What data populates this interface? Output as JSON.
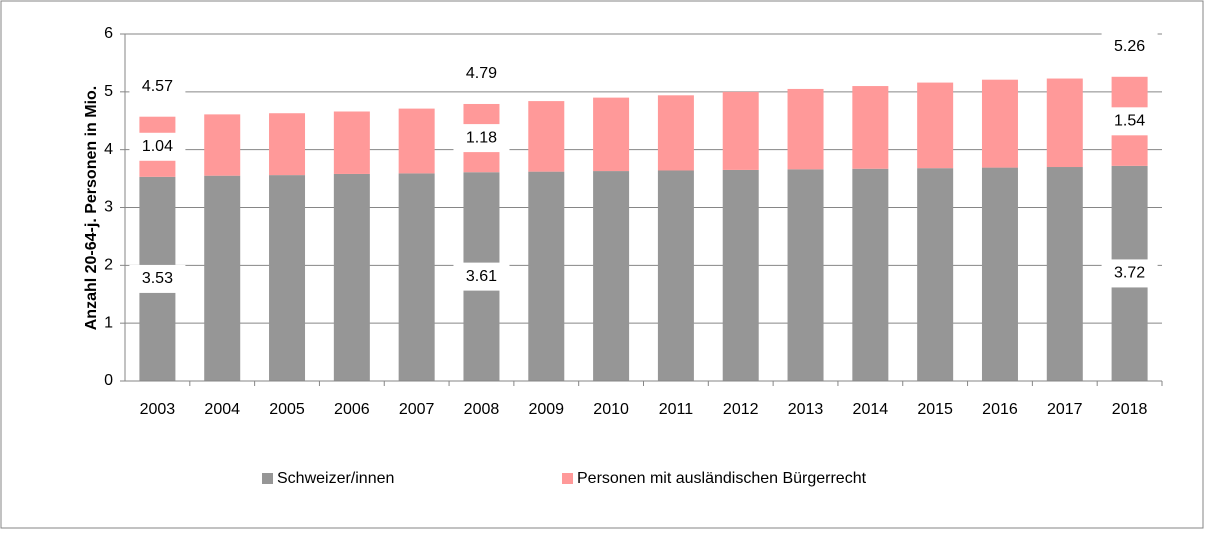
{
  "chart_data": {
    "type": "stacked-bar",
    "y_label": "Anzahl 20-64-j. Personen in Mio.",
    "categories": [
      "2003",
      "2004",
      "2005",
      "2006",
      "2007",
      "2008",
      "2009",
      "2010",
      "2011",
      "2012",
      "2013",
      "2014",
      "2015",
      "2016",
      "2017",
      "2018"
    ],
    "series": [
      {
        "name": "Schweizer/innen",
        "color": "#969696",
        "values": [
          3.53,
          3.55,
          3.56,
          3.58,
          3.59,
          3.61,
          3.62,
          3.63,
          3.64,
          3.65,
          3.66,
          3.67,
          3.68,
          3.69,
          3.7,
          3.72
        ],
        "value_labels": [
          "3.53",
          null,
          null,
          null,
          null,
          "3.61",
          null,
          null,
          null,
          null,
          null,
          null,
          null,
          null,
          null,
          "3.72"
        ]
      },
      {
        "name": "Personen mit ausländischen Bürgerrecht",
        "color": "#ff9999",
        "values": [
          1.04,
          1.06,
          1.07,
          1.08,
          1.12,
          1.18,
          1.22,
          1.27,
          1.3,
          1.35,
          1.39,
          1.43,
          1.48,
          1.52,
          1.53,
          1.54
        ],
        "value_labels": [
          "1.04",
          null,
          null,
          null,
          null,
          "1.18",
          null,
          null,
          null,
          null,
          null,
          null,
          null,
          null,
          null,
          "1.54"
        ]
      }
    ],
    "total_labels": [
      "4.57",
      null,
      null,
      null,
      null,
      "4.79",
      null,
      null,
      null,
      null,
      null,
      null,
      null,
      null,
      null,
      "5.26"
    ],
    "ylim": [
      0,
      6
    ],
    "yticks": [
      0,
      1,
      2,
      3,
      4,
      5,
      6
    ],
    "grid": true,
    "legend": "bottom"
  }
}
